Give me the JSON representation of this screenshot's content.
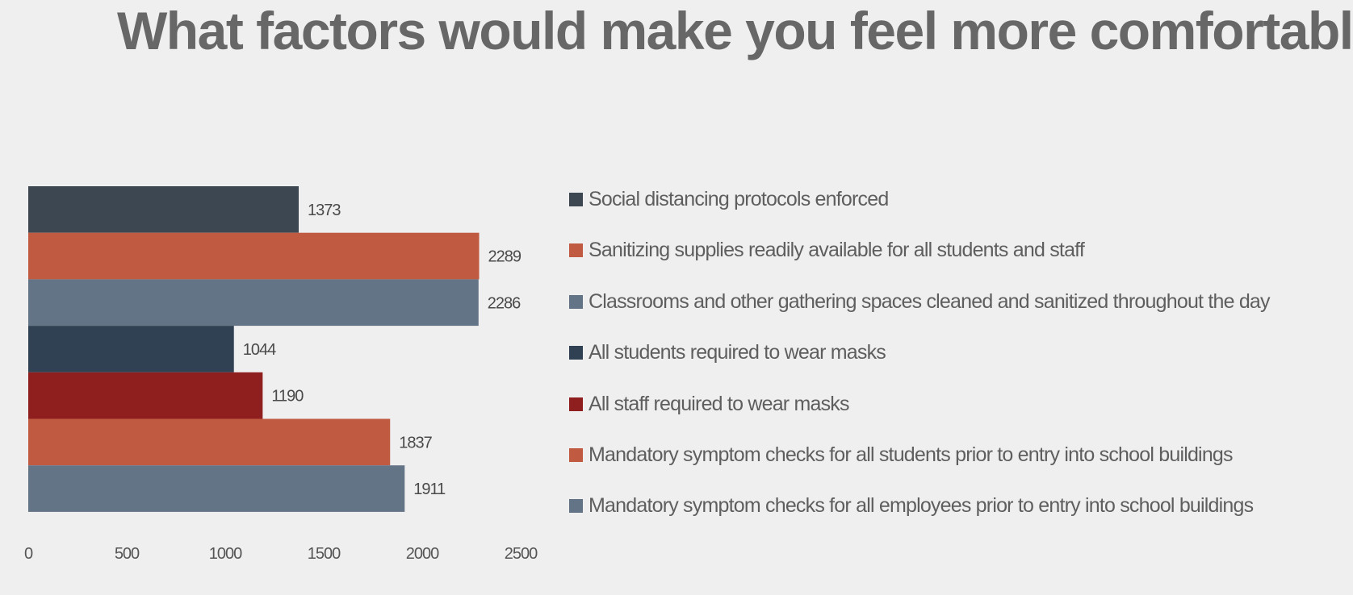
{
  "title": "What factors would make you feel more comfortable?",
  "chart_data": {
    "type": "bar",
    "orientation": "horizontal",
    "title": "What factors would make you feel more comfortable?",
    "xlabel": "",
    "ylabel": "",
    "xlim": [
      0,
      2500
    ],
    "ticks": [
      "0",
      "500",
      "1000",
      "1500",
      "2000",
      "2500"
    ],
    "tick_values": [
      0,
      500,
      1000,
      1500,
      2000,
      2500
    ],
    "grid": false,
    "legend_position": "right",
    "series": [
      {
        "name": "Social distancing protocols enforced",
        "value": 1373,
        "color": "#3d4752"
      },
      {
        "name": "Sanitizing supplies readily available for all students and staff",
        "value": 2289,
        "color": "#c05a41"
      },
      {
        "name": "Classrooms and other gathering spaces cleaned and sanitized throughout the day",
        "value": 2286,
        "color": "#647487"
      },
      {
        "name": "All students required to wear masks",
        "value": 1044,
        "color": "#2f4152"
      },
      {
        "name": "All staff required to wear masks",
        "value": 1190,
        "color": "#8e1f1e"
      },
      {
        "name": "Mandatory symptom checks for all students prior to entry into school buildings",
        "value": 1837,
        "color": "#c05a41"
      },
      {
        "name": "Mandatory symptom checks for all employees prior to entry into school buildings",
        "value": 1911,
        "color": "#647487"
      }
    ]
  }
}
